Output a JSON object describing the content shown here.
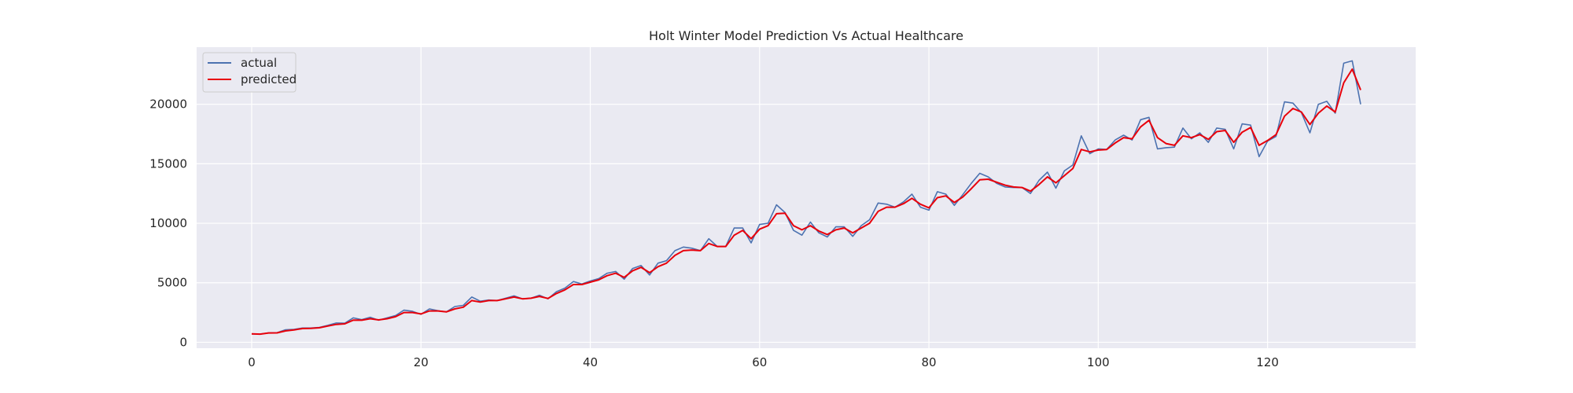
{
  "chart_data": {
    "type": "line",
    "title": "Holt Winter Model Prediction Vs Actual Healthcare",
    "xlabel": "",
    "ylabel": "",
    "xlim": [
      -6.5,
      137.5
    ],
    "ylim": [
      -500,
      24800
    ],
    "xticks": [
      0,
      20,
      40,
      60,
      80,
      100,
      120
    ],
    "yticks": [
      0,
      5000,
      10000,
      15000,
      20000
    ],
    "grid": true,
    "legend_position": "top-left",
    "background_color": "#eaeaf2",
    "series": [
      {
        "name": "actual",
        "color": "#4c72b0",
        "values": [
          700,
          680,
          790,
          800,
          1050,
          1080,
          1200,
          1200,
          1250,
          1420,
          1620,
          1600,
          2050,
          1900,
          2100,
          1850,
          2050,
          2250,
          2700,
          2600,
          2350,
          2800,
          2650,
          2550,
          3000,
          3100,
          3800,
          3450,
          3550,
          3500,
          3700,
          3900,
          3650,
          3700,
          3950,
          3650,
          4250,
          4550,
          5100,
          4900,
          5150,
          5350,
          5800,
          5950,
          5300,
          6200,
          6450,
          5650,
          6650,
          6850,
          7700,
          8000,
          7900,
          7700,
          8700,
          8050,
          8050,
          9600,
          9600,
          8350,
          9900,
          10000,
          11550,
          10900,
          9400,
          9000,
          10100,
          9200,
          8850,
          9700,
          9700,
          8900,
          9800,
          10300,
          11700,
          11600,
          11350,
          11800,
          12450,
          11350,
          11100,
          12650,
          12450,
          11500,
          12400,
          13350,
          14200,
          13900,
          13350,
          13050,
          13000,
          13000,
          12500,
          13600,
          14300,
          12950,
          14400,
          14900,
          17350,
          15850,
          16250,
          16200,
          17000,
          17400,
          17000,
          18700,
          18900,
          16250,
          16350,
          16400,
          18000,
          17100,
          17600,
          16800,
          18000,
          17900,
          16250,
          18350,
          18250,
          15600,
          16900,
          17300,
          20200,
          20100,
          19300,
          17600,
          20000,
          20250,
          19250,
          23450,
          23650,
          20000
        ]
      },
      {
        "name": "predicted",
        "color": "#e8000b",
        "values": [
          700,
          680,
          780,
          790,
          950,
          1030,
          1150,
          1170,
          1220,
          1360,
          1500,
          1550,
          1860,
          1850,
          1980,
          1880,
          1980,
          2150,
          2500,
          2500,
          2380,
          2630,
          2630,
          2550,
          2800,
          2950,
          3500,
          3380,
          3500,
          3500,
          3650,
          3800,
          3650,
          3700,
          3850,
          3680,
          4100,
          4400,
          4850,
          4850,
          5050,
          5250,
          5600,
          5800,
          5450,
          6000,
          6300,
          5850,
          6350,
          6650,
          7300,
          7700,
          7750,
          7700,
          8300,
          8050,
          8050,
          9000,
          9400,
          8700,
          9500,
          9800,
          10800,
          10850,
          9800,
          9450,
          9800,
          9350,
          9050,
          9450,
          9600,
          9200,
          9600,
          10000,
          11000,
          11350,
          11350,
          11650,
          12100,
          11600,
          11300,
          12150,
          12300,
          11750,
          12200,
          12900,
          13650,
          13700,
          13450,
          13200,
          13050,
          13000,
          12700,
          13250,
          13900,
          13400,
          14000,
          14600,
          16200,
          16000,
          16150,
          16200,
          16750,
          17200,
          17100,
          18100,
          18650,
          17200,
          16700,
          16550,
          17350,
          17200,
          17450,
          17050,
          17700,
          17800,
          16800,
          17650,
          18050,
          16550,
          16950,
          17450,
          19000,
          19650,
          19350,
          18300,
          19250,
          19850,
          19350,
          21800,
          22950,
          21200
        ]
      }
    ]
  }
}
